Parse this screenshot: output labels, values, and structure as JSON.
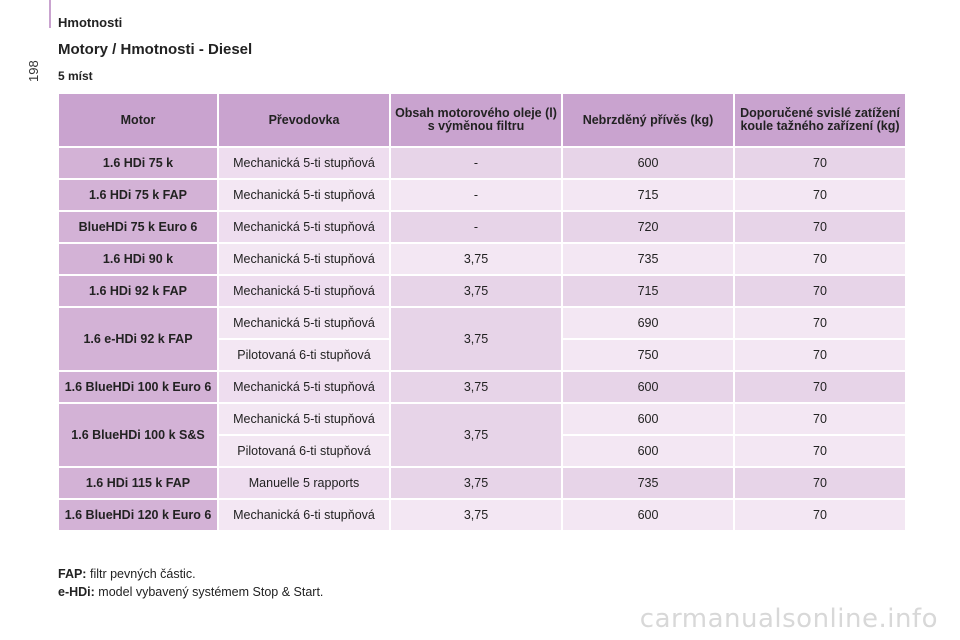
{
  "header": {
    "section_label": "Hmotnosti",
    "page_number": "198"
  },
  "title": "Motory / Hmotnosti - Diesel",
  "subtitle": "5 míst",
  "table": {
    "headers": [
      "Motor",
      "Převodovka",
      "Obsah motorového oleje (l) s výměnou filtru",
      "Nebrzděný přívěs (kg)",
      "Doporučené svislé zatížení koule tažného zařízení (kg)"
    ],
    "rows": [
      {
        "motor": "1.6 HDi 75 k",
        "gearbox": "Mechanická 5-ti stupňová",
        "oil": "-",
        "trailer": "600",
        "load": "70"
      },
      {
        "motor": "1.6 HDi 75 k FAP",
        "gearbox": "Mechanická 5-ti stupňová",
        "oil": "-",
        "trailer": "715",
        "load": "70"
      },
      {
        "motor": "BlueHDi 75 k Euro 6",
        "gearbox": "Mechanická 5-ti stupňová",
        "oil": "-",
        "trailer": "720",
        "load": "70"
      },
      {
        "motor": "1.6 HDi 90 k",
        "gearbox": "Mechanická 5-ti stupňová",
        "oil": "3,75",
        "trailer": "735",
        "load": "70"
      },
      {
        "motor": "1.6 HDi 92 k FAP",
        "gearbox": "Mechanická 5-ti stupňová",
        "oil": "3,75",
        "trailer": "715",
        "load": "70"
      },
      {
        "motor": "1.6 e-HDi 92 k FAP",
        "gearbox": "Mechanická 5-ti stupňová",
        "oil": "3,75",
        "trailer": "690",
        "load": "70",
        "gearbox_b": "Pilotovaná 6-ti stupňová",
        "trailer_b": "750",
        "load_b": "70"
      },
      {
        "motor": "1.6 BlueHDi 100 k Euro 6",
        "gearbox": "Mechanická 5-ti stupňová",
        "oil": "3,75",
        "trailer": "600",
        "load": "70"
      },
      {
        "motor": "1.6 BlueHDi 100 k S&S",
        "gearbox": "Mechanická 5-ti stupňová",
        "oil": "3,75",
        "trailer": "600",
        "load": "70",
        "gearbox_b": "Pilotovaná 6-ti stupňová",
        "trailer_b": "600",
        "load_b": "70"
      },
      {
        "motor": "1.6 HDi 115 k FAP",
        "gearbox": "Manuelle 5 rapports",
        "oil": "3,75",
        "trailer": "735",
        "load": "70"
      },
      {
        "motor": "1.6 BlueHDi 120 k Euro 6",
        "gearbox": "Mechanická 6-ti stupňová",
        "oil": "3,75",
        "trailer": "600",
        "load": "70"
      }
    ]
  },
  "footnotes": [
    {
      "term": "FAP:",
      "text": "filtr pevných částic."
    },
    {
      "term": "e-HDi:",
      "text": "model vybavený systémem Stop & Start."
    }
  ],
  "watermark": "carmanualsonline.info"
}
